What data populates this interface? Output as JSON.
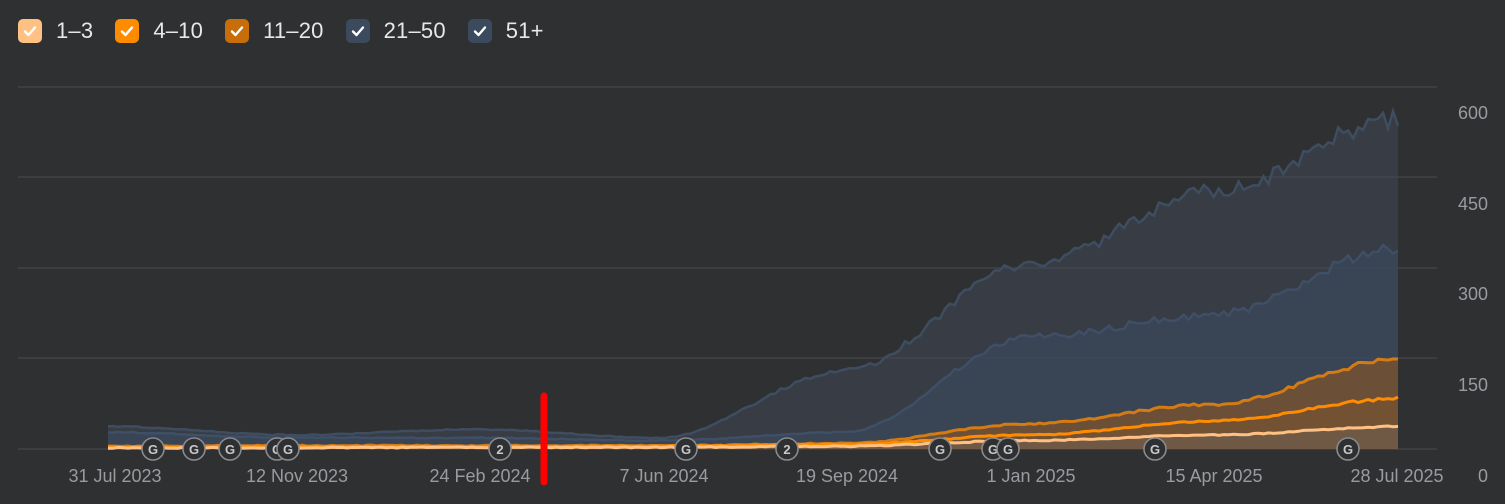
{
  "legend": [
    {
      "label": "1–3",
      "color": "#ffc183",
      "checked": true
    },
    {
      "label": "4–10",
      "color": "#ff8c00",
      "checked": true
    },
    {
      "label": "11–20",
      "color": "#c76d0a",
      "checked": true
    },
    {
      "label": "21–50",
      "color": "#3b4a5c",
      "checked": true
    },
    {
      "label": "51+",
      "color": "#3b4a5c",
      "checked": true
    }
  ],
  "chart_data": {
    "type": "area",
    "stacked": true,
    "x_ticks": [
      "31 Jul 2023",
      "12 Nov 2023",
      "24 Feb 2024",
      "7 Jun 2024",
      "19 Sep 2024",
      "1 Jan 2025",
      "15 Apr 2025",
      "28 Jul 2025"
    ],
    "y_ticks": [
      0,
      150,
      300,
      450,
      600
    ],
    "ylim": [
      0,
      600
    ],
    "y_axis_position": "right",
    "grid": true,
    "x": [
      "31 Jul 2023",
      "12 Nov 2023",
      "24 Feb 2024",
      "7 Jun 2024",
      "19 Sep 2024",
      "1 Jan 2025",
      "15 Apr 2025",
      "28 Jul 2025"
    ],
    "series": [
      {
        "name": "1–3",
        "color": "#ffc183",
        "values": [
          2,
          2,
          3,
          3,
          5,
          15,
          25,
          40
        ]
      },
      {
        "name": "4–10",
        "color": "#ff8c00",
        "values": [
          3,
          4,
          4,
          5,
          8,
          25,
          50,
          90
        ]
      },
      {
        "name": "11–20",
        "color": "#c76d0a",
        "values": [
          5,
          6,
          6,
          6,
          10,
          45,
          80,
          160
        ]
      },
      {
        "name": "21–50",
        "color": "#3b4a5c",
        "values": [
          30,
          20,
          20,
          15,
          30,
          200,
          240,
          360
        ]
      },
      {
        "name": "51+",
        "color": "#3b4a5c",
        "values": [
          40,
          25,
          35,
          20,
          140,
          330,
          460,
          590
        ]
      }
    ],
    "annotations": [
      "G",
      "G",
      "G",
      "G",
      "G",
      "2",
      "G",
      "2",
      "G",
      "G",
      "G",
      "G",
      "G"
    ],
    "highlight_marker_color": "#ff0000"
  }
}
